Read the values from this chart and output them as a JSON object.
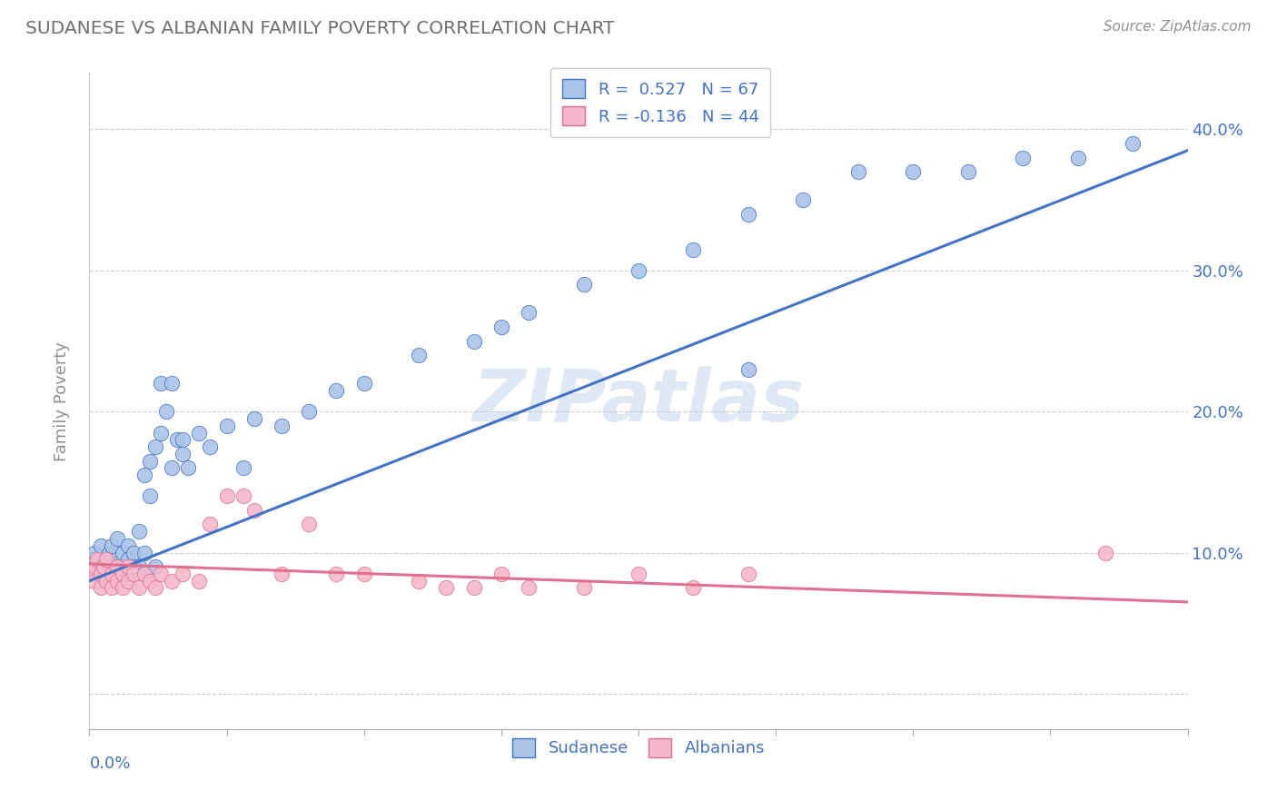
{
  "title": "SUDANESE VS ALBANIAN FAMILY POVERTY CORRELATION CHART",
  "source": "Source: ZipAtlas.com",
  "ylabel": "Family Poverty",
  "y_ticks": [
    0.0,
    0.1,
    0.2,
    0.3,
    0.4
  ],
  "y_tick_labels": [
    "",
    "10.0%",
    "20.0%",
    "30.0%",
    "40.0%"
  ],
  "xlim": [
    0.0,
    0.2
  ],
  "ylim": [
    -0.025,
    0.44
  ],
  "sudanese_color": "#aac4e8",
  "sudanese_line_color": "#4472c4",
  "albanian_color": "#f5b8cb",
  "albanian_line_color": "#e07090",
  "watermark": "ZIPatlas",
  "background_color": "#ffffff",
  "grid_color": "#cccccc",
  "title_color": "#707070",
  "sud_line_x0": 0.0,
  "sud_line_y0": 0.08,
  "sud_line_x1": 0.2,
  "sud_line_y1": 0.385,
  "alb_line_x0": 0.0,
  "alb_line_y0": 0.092,
  "alb_line_x1": 0.2,
  "alb_line_y1": 0.065,
  "sudanese_x": [
    0.0005,
    0.001,
    0.0015,
    0.002,
    0.002,
    0.0025,
    0.003,
    0.003,
    0.0035,
    0.004,
    0.004,
    0.004,
    0.0045,
    0.005,
    0.005,
    0.005,
    0.006,
    0.006,
    0.006,
    0.007,
    0.007,
    0.007,
    0.008,
    0.008,
    0.009,
    0.009,
    0.01,
    0.01,
    0.011,
    0.012,
    0.013,
    0.014,
    0.015,
    0.016,
    0.017,
    0.018,
    0.01,
    0.011,
    0.012,
    0.013,
    0.015,
    0.017,
    0.02,
    0.022,
    0.025,
    0.028,
    0.03,
    0.035,
    0.04,
    0.045,
    0.05,
    0.06,
    0.07,
    0.075,
    0.08,
    0.09,
    0.1,
    0.11,
    0.12,
    0.13,
    0.14,
    0.15,
    0.16,
    0.17,
    0.18,
    0.19,
    0.12
  ],
  "sudanese_y": [
    0.095,
    0.1,
    0.09,
    0.085,
    0.105,
    0.09,
    0.095,
    0.085,
    0.1,
    0.085,
    0.095,
    0.105,
    0.09,
    0.11,
    0.09,
    0.085,
    0.1,
    0.09,
    0.085,
    0.105,
    0.095,
    0.085,
    0.1,
    0.09,
    0.115,
    0.09,
    0.1,
    0.085,
    0.14,
    0.09,
    0.22,
    0.2,
    0.22,
    0.18,
    0.17,
    0.16,
    0.155,
    0.165,
    0.175,
    0.185,
    0.16,
    0.18,
    0.185,
    0.175,
    0.19,
    0.16,
    0.195,
    0.19,
    0.2,
    0.215,
    0.22,
    0.24,
    0.25,
    0.26,
    0.27,
    0.29,
    0.3,
    0.315,
    0.34,
    0.35,
    0.37,
    0.37,
    0.37,
    0.38,
    0.38,
    0.39,
    0.23
  ],
  "albanian_x": [
    0.0005,
    0.001,
    0.001,
    0.0015,
    0.002,
    0.002,
    0.0025,
    0.003,
    0.003,
    0.004,
    0.004,
    0.005,
    0.005,
    0.006,
    0.006,
    0.007,
    0.007,
    0.008,
    0.009,
    0.01,
    0.011,
    0.012,
    0.013,
    0.015,
    0.017,
    0.02,
    0.022,
    0.025,
    0.028,
    0.03,
    0.035,
    0.04,
    0.045,
    0.05,
    0.06,
    0.065,
    0.07,
    0.075,
    0.08,
    0.09,
    0.1,
    0.11,
    0.12,
    0.185
  ],
  "albanian_y": [
    0.085,
    0.09,
    0.08,
    0.095,
    0.085,
    0.075,
    0.09,
    0.08,
    0.095,
    0.085,
    0.075,
    0.09,
    0.08,
    0.085,
    0.075,
    0.09,
    0.08,
    0.085,
    0.075,
    0.085,
    0.08,
    0.075,
    0.085,
    0.08,
    0.085,
    0.08,
    0.12,
    0.14,
    0.14,
    0.13,
    0.085,
    0.12,
    0.085,
    0.085,
    0.08,
    0.075,
    0.075,
    0.085,
    0.075,
    0.075,
    0.085,
    0.075,
    0.085,
    0.1
  ]
}
